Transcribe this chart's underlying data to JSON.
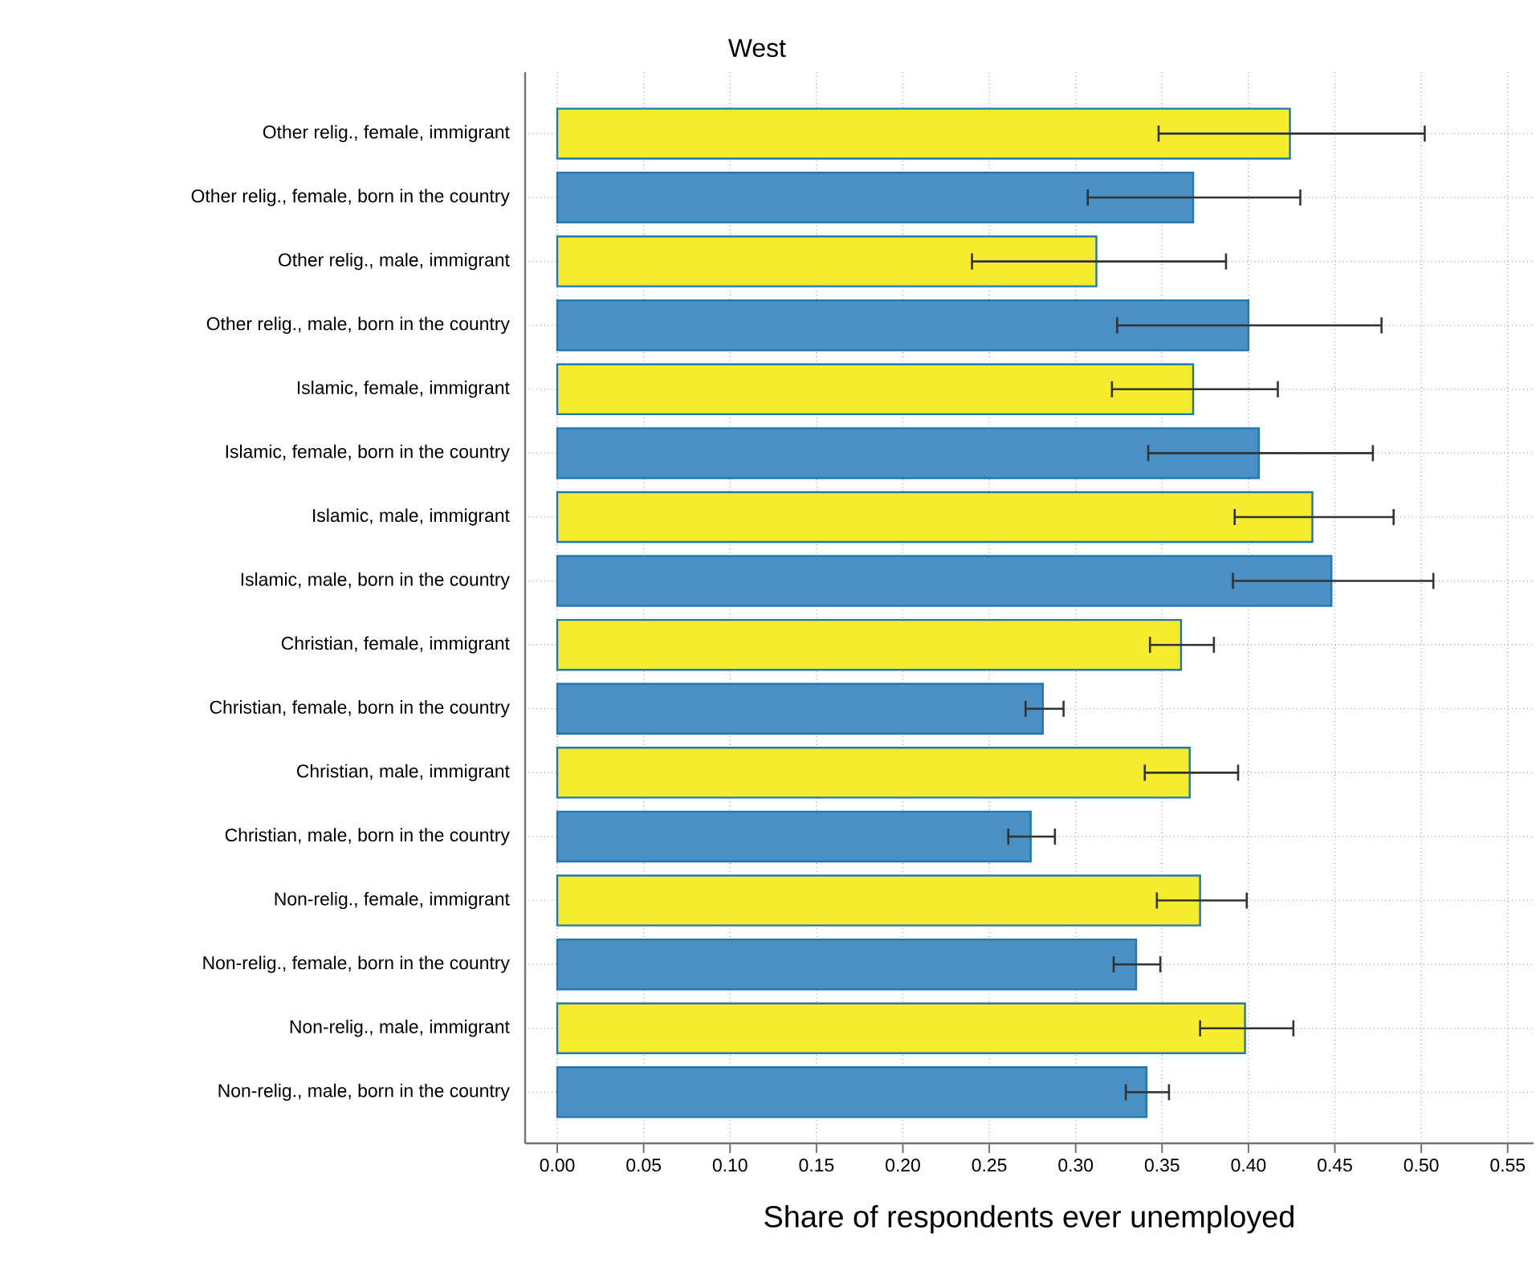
{
  "chart_data": {
    "type": "bar",
    "orientation": "horizontal",
    "title": "West",
    "xlabel": "Share of respondents ever unemployed",
    "categories": [
      "Other relig., female, immigrant",
      "Other relig., female, born in the country",
      "Other relig., male, immigrant",
      "Other relig., male, born in the country",
      "Islamic, female, immigrant",
      "Islamic, female, born in the country",
      "Islamic, male, immigrant",
      "Islamic, male, born in the country",
      "Christian, female, immigrant",
      "Christian, female, born in the country",
      "Christian, male, immigrant",
      "Christian, male, born in the country",
      "Non-relig., female, immigrant",
      "Non-relig., female, born in the country",
      "Non-relig., male, immigrant",
      "Non-relig., male, born in the country"
    ],
    "values": [
      0.424,
      0.368,
      0.312,
      0.4,
      0.368,
      0.406,
      0.437,
      0.448,
      0.361,
      0.281,
      0.366,
      0.274,
      0.372,
      0.335,
      0.398,
      0.341
    ],
    "errors": [
      [
        0.348,
        0.502
      ],
      [
        0.307,
        0.43
      ],
      [
        0.24,
        0.387
      ],
      [
        0.324,
        0.477
      ],
      [
        0.321,
        0.417
      ],
      [
        0.342,
        0.472
      ],
      [
        0.392,
        0.484
      ],
      [
        0.391,
        0.507
      ],
      [
        0.343,
        0.38
      ],
      [
        0.271,
        0.293
      ],
      [
        0.34,
        0.394
      ],
      [
        0.261,
        0.288
      ],
      [
        0.347,
        0.399
      ],
      [
        0.322,
        0.349
      ],
      [
        0.372,
        0.426
      ],
      [
        0.329,
        0.354
      ]
    ],
    "colors": [
      "#f5ec2e",
      "#4a90c4",
      "#f5ec2e",
      "#4a90c4",
      "#f5ec2e",
      "#4a90c4",
      "#f5ec2e",
      "#4a90c4",
      "#f5ec2e",
      "#4a90c4",
      "#f5ec2e",
      "#4a90c4",
      "#f5ec2e",
      "#4a90c4",
      "#f5ec2e",
      "#4a90c4"
    ],
    "xlim": [
      -0.0186,
      0.565
    ],
    "xticks": [
      {
        "value": 0,
        "label": "0.00"
      },
      {
        "value": 0.05,
        "label": "0.05"
      },
      {
        "value": 0.1,
        "label": "0.10"
      },
      {
        "value": 0.15,
        "label": "0.15"
      },
      {
        "value": 0.2,
        "label": "0.20"
      },
      {
        "value": 0.25,
        "label": "0.25"
      },
      {
        "value": 0.3,
        "label": "0.30"
      },
      {
        "value": 0.35,
        "label": "0.35"
      },
      {
        "value": 0.4,
        "label": "0.40"
      },
      {
        "value": 0.45,
        "label": "0.45"
      },
      {
        "value": 0.5,
        "label": "0.50"
      },
      {
        "value": 0.55,
        "label": "0.55"
      }
    ],
    "grid": true
  }
}
